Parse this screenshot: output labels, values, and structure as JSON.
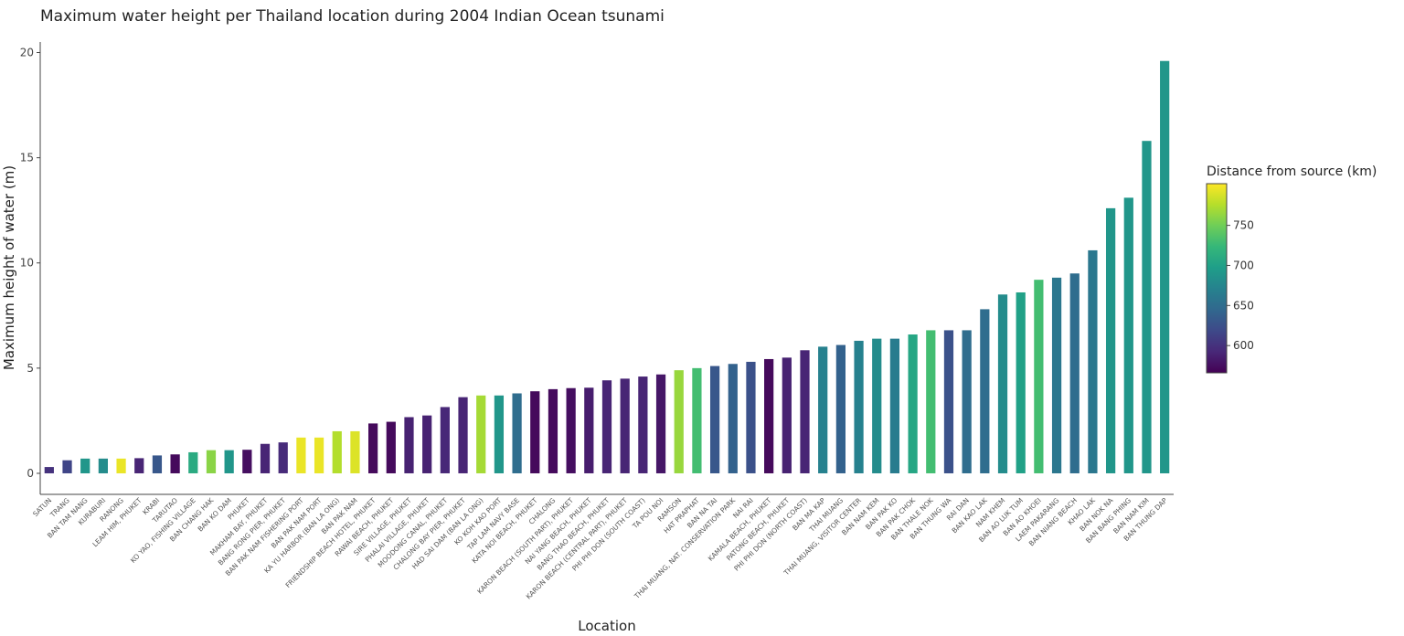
{
  "chart_data": {
    "type": "bar",
    "title": "Maximum water height per Thailand location during 2004 Indian Ocean tsunami",
    "xlabel": "Location",
    "ylabel": "Maximum height of water (m)",
    "ylim": [
      -1,
      20.5
    ],
    "yticks": [
      0,
      5,
      10,
      15,
      20
    ],
    "grid": false,
    "colorbar": {
      "title": "Distance from source (km)",
      "range": [
        566,
        802
      ],
      "ticks": [
        600,
        650,
        700,
        750
      ],
      "colorscale": [
        "#440154",
        "#482878",
        "#3e4989",
        "#31688e",
        "#26828e",
        "#1f9e89",
        "#35b779",
        "#6ece58",
        "#b5de2b",
        "#fde725"
      ]
    },
    "categories": [
      "SATUN",
      "TRANG",
      "BAN TAM NANG",
      "KURABURI",
      "RANONG",
      "LEAM HIM, PHUKET",
      "KRABI",
      "TARUTAO",
      "KO YAO, FISHING VILLAGE",
      "BAN CHANG HAK",
      "BAN KO DAM",
      "PHUKET",
      "MAKHAM BAY, PHUKET",
      "BANG RONG PIER, PHUKET",
      "BAN PAK NAM FISHERING PORT",
      "BAN PAK NAM PORT",
      "KA YU HARBOR (BAN LA ONG)",
      "BAN PAK NAM",
      "FRIENDSHIP BEACH HOTEL, PHUKET",
      "RAWAI BEACH, PHUKET",
      "SIRE VILLAGE, PHUKET",
      "PHALAI VILLAGE, PHUKET",
      "MOODONG CANAL, PHUKET",
      "CHALONG BAY PIER, PHUKET",
      "HAD SAI DAM (BAN LA ONG)",
      "KO KOH KAO PORT",
      "TAP LAM NAVY BASE",
      "KATA NOI BEACH, PHUKET",
      "CHALONG",
      "KARON BEACH (SOUTH PART), PHUKET",
      "NAI YANG BEACH, PHUKET",
      "BANG THAO BEACH, PHUKET",
      "KARON BEACH (CENTRAL PART), PHUKET",
      "PHI PHI DON (SOUTH COAST)",
      "TA POU NOI",
      "RAMSON",
      "HAT PRAPHAT",
      "BAN NA TAI",
      "THAI MUANG, NAT. CONSERVATION PARK",
      "NAI RAI",
      "KAMALA BEACH, PHUKET",
      "PATONG BEACH, PHUKET",
      "PHI PHI DON (NORTH COAST)",
      "BAN MA KAP",
      "THAI MUANG",
      "THAI MUANG, VISITOR CENTER",
      "BAN NAM KEM",
      "BAN PAK KO",
      "BAN PAK CHOK",
      "BAN THALE NOK",
      "BAN THUNG WA",
      "RAI DAN",
      "BAN KAO LAK",
      "NAM KHEM",
      "BAN AO LUK TUM",
      "BAN AO KHOEI",
      "LAEM PAKARANG",
      "BAN NIANG BEACH",
      "KHAO LAK",
      "BAN NOK NA",
      "BAN BANG PHING",
      "BAN NAM KIM",
      "BAN THUNG DAP"
    ],
    "values": [
      0.3,
      0.62,
      0.7,
      0.7,
      0.7,
      0.72,
      0.85,
      0.9,
      1.0,
      1.1,
      1.1,
      1.12,
      1.4,
      1.47,
      1.7,
      1.7,
      2.0,
      2.0,
      2.37,
      2.45,
      2.67,
      2.75,
      3.15,
      3.62,
      3.7,
      3.7,
      3.8,
      3.9,
      4.0,
      4.05,
      4.07,
      4.42,
      4.5,
      4.6,
      4.7,
      4.9,
      5.0,
      5.1,
      5.2,
      5.3,
      5.43,
      5.5,
      5.85,
      6.02,
      6.1,
      6.3,
      6.4,
      6.4,
      6.6,
      6.8,
      6.8,
      6.8,
      7.8,
      8.5,
      8.6,
      9.2,
      9.3,
      9.5,
      10.6,
      12.6,
      13.1,
      15.8,
      19.6
    ],
    "distance_km": [
      600,
      615,
      690,
      680,
      795,
      590,
      630,
      572,
      710,
      760,
      690,
      575,
      590,
      595,
      795,
      795,
      775,
      790,
      572,
      572,
      588,
      588,
      592,
      590,
      770,
      690,
      650,
      572,
      572,
      575,
      585,
      590,
      590,
      590,
      580,
      765,
      730,
      630,
      640,
      625,
      572,
      588,
      590,
      670,
      640,
      670,
      680,
      665,
      705,
      730,
      625,
      650,
      650,
      680,
      700,
      730,
      660,
      650,
      660,
      690,
      690,
      690,
      690
    ]
  }
}
